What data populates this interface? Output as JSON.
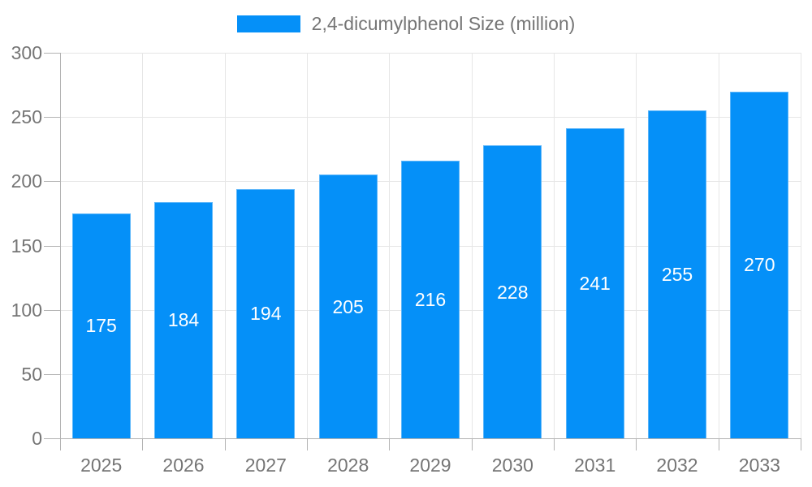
{
  "legend": {
    "label": "2,4-dicumylphenol Size (million)"
  },
  "colors": {
    "bar": "#0590f8",
    "axis": "#b3b3b3",
    "gridline": "#e6e6e6",
    "label_text": "#757575",
    "value_label_text": "#ffffff",
    "background": "#ffffff"
  },
  "chart_data": {
    "type": "bar",
    "title": "2,4-dicumylphenol Size (million)",
    "categories": [
      "2025",
      "2026",
      "2027",
      "2028",
      "2029",
      "2030",
      "2031",
      "2032",
      "2033"
    ],
    "series": [
      {
        "name": "2,4-dicumylphenol Size (million)",
        "color": "#0590f8",
        "values": [
          175,
          184,
          194,
          205,
          216,
          228,
          241,
          255,
          270
        ]
      }
    ],
    "xlabel": "",
    "ylabel": "",
    "ylim": [
      0,
      300
    ],
    "yticks": [
      0,
      50,
      100,
      150,
      200,
      250,
      300
    ],
    "grid": "horizontal-and-vertical",
    "legend_position": "top-center",
    "value_label_position": "inside-middle"
  }
}
